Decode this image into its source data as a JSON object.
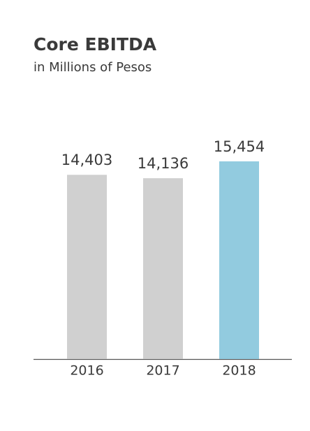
{
  "chart_data": {
    "type": "bar",
    "title": "Core EBITDA",
    "subtitle": "in Millions of Pesos",
    "categories": [
      "2016",
      "2017",
      "2018"
    ],
    "values": [
      14403,
      14136,
      15454
    ],
    "value_labels": [
      "14,403",
      "14,136",
      "15,454"
    ],
    "colors": [
      "#d0d0d0",
      "#d0d0d0",
      "#92cbdf"
    ]
  }
}
